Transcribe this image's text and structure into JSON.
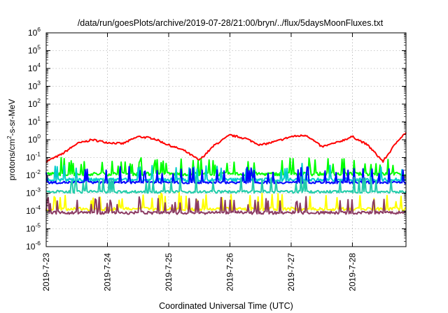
{
  "chart_data": {
    "type": "line",
    "title": "/data/run/goesPlots/archive/2019-07-28/21:00/bryn/../flux/5daysMoonFluxes.txt",
    "xlabel": "Coordinated Universal Time (UTC)",
    "ylabel": "protons/cm²-s-sr-MeV",
    "ylabel_parts": {
      "pre": "protons/cm",
      "sup": "2",
      "post": "-s-sr-MeV"
    },
    "yscale": "log",
    "ylim": [
      1e-06,
      1000000.0
    ],
    "y_ticks": [
      {
        "base": "10",
        "exp": "-6"
      },
      {
        "base": "10",
        "exp": "-5"
      },
      {
        "base": "10",
        "exp": "-4"
      },
      {
        "base": "10",
        "exp": "-3"
      },
      {
        "base": "10",
        "exp": "-2"
      },
      {
        "base": "10",
        "exp": "-1"
      },
      {
        "base": "10",
        "exp": "0"
      },
      {
        "base": "10",
        "exp": "1"
      },
      {
        "base": "10",
        "exp": "2"
      },
      {
        "base": "10",
        "exp": "3"
      },
      {
        "base": "10",
        "exp": "4"
      },
      {
        "base": "10",
        "exp": "5"
      },
      {
        "base": "10",
        "exp": "6"
      }
    ],
    "xlim": [
      "2019-07-23",
      "2019-07-28T21:00"
    ],
    "x_ticks": [
      "2019-7-23",
      "2019-7-24",
      "2019-7-25",
      "2019-7-26",
      "2019-7-27",
      "2019-7-28"
    ],
    "grid": true,
    "series": [
      {
        "color": "#ff0000",
        "x": [
          "2019-07-23T00:00",
          "2019-07-23T06:00",
          "2019-07-23T12:00",
          "2019-07-23T18:00",
          "2019-07-24T00:00",
          "2019-07-24T06:00",
          "2019-07-24T12:00",
          "2019-07-24T18:00",
          "2019-07-25T00:00",
          "2019-07-25T06:00",
          "2019-07-25T12:00",
          "2019-07-25T18:00",
          "2019-07-26T00:00",
          "2019-07-26T06:00",
          "2019-07-26T12:00",
          "2019-07-26T18:00",
          "2019-07-27T00:00",
          "2019-07-27T06:00",
          "2019-07-27T12:00",
          "2019-07-27T18:00",
          "2019-07-28T00:00",
          "2019-07-28T06:00",
          "2019-07-28T12:00",
          "2019-07-28T18:00",
          "2019-07-28T21:00"
        ],
        "values": [
          0.06,
          0.15,
          0.6,
          1.0,
          0.7,
          0.6,
          1.5,
          1.2,
          0.5,
          0.25,
          0.07,
          0.5,
          1.8,
          1.2,
          0.5,
          0.8,
          1.5,
          1.8,
          0.4,
          0.7,
          1.5,
          0.5,
          0.06,
          1.0,
          2.5
        ]
      },
      {
        "color": "#00ff00",
        "x": [
          "2019-07-23",
          "2019-07-28T21:00"
        ],
        "values": [
          0.012,
          0.012
        ]
      },
      {
        "color": "#00cccc",
        "x": [
          "2019-07-23",
          "2019-07-28T21:00"
        ],
        "values": [
          0.0055,
          0.0055
        ]
      },
      {
        "color": "#0000ff",
        "x": [
          "2019-07-23",
          "2019-07-28T21:00"
        ],
        "values": [
          0.004,
          0.004
        ]
      },
      {
        "color": "#22ccaa",
        "x": [
          "2019-07-23",
          "2019-07-28T21:00"
        ],
        "values": [
          0.0012,
          0.0012
        ]
      },
      {
        "color": "#ffff00",
        "x": [
          "2019-07-23",
          "2019-07-28T21:00"
        ],
        "values": [
          0.00013,
          0.00013
        ]
      },
      {
        "color": "#8b3a62",
        "x": [
          "2019-07-23",
          "2019-07-28T21:00"
        ],
        "values": [
          8e-05,
          8e-05
        ]
      }
    ]
  }
}
